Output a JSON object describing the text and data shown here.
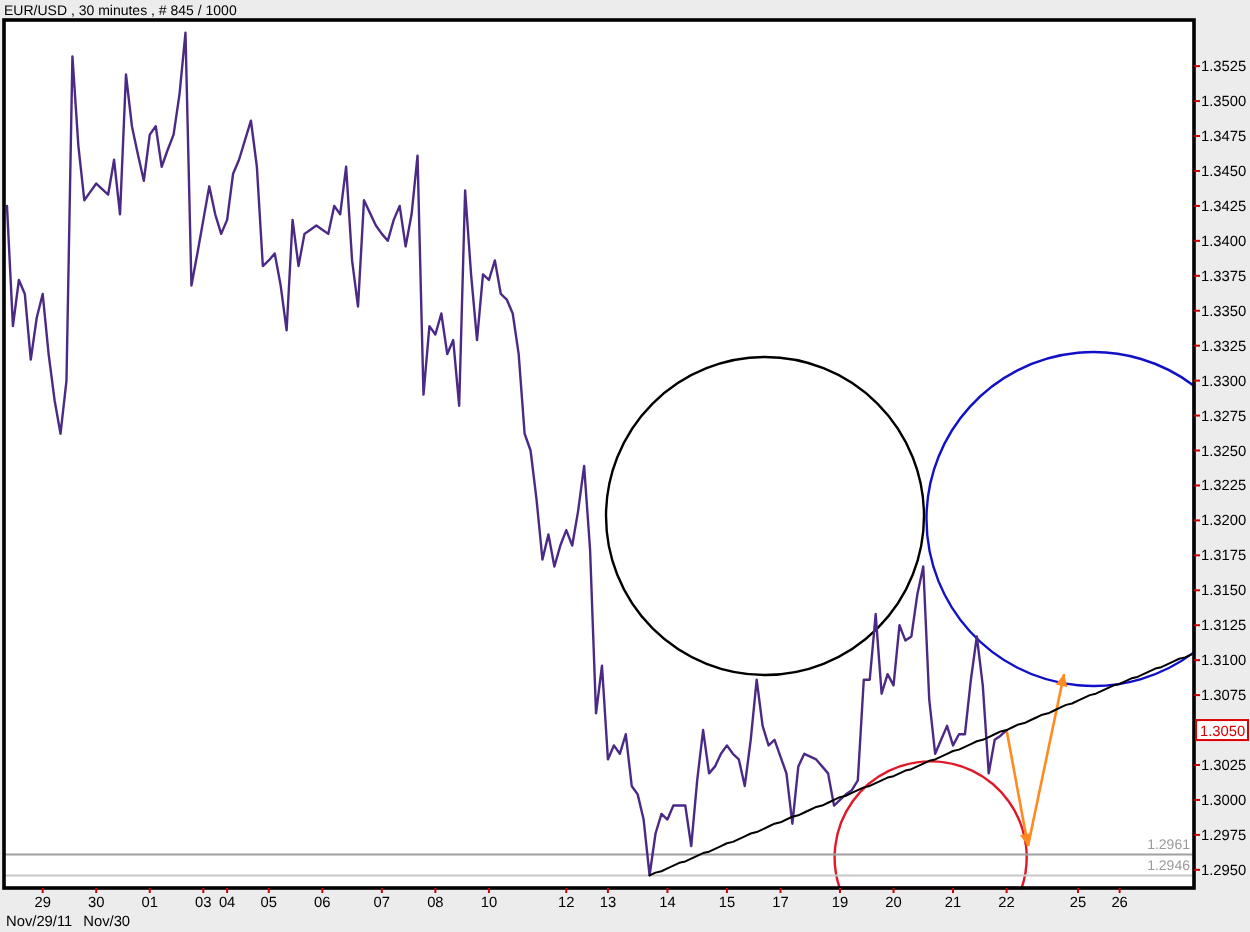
{
  "chart_data": {
    "type": "line",
    "title": "EUR/USD , 30 minutes , # 845 / 1000",
    "annotations": [
      "Nov/29/11",
      "Nov/30",
      {
        "text": "1.3050",
        "y": 1.305
      }
    ],
    "categories": [
      null,
      null,
      null,
      null,
      null,
      null,
      "29",
      null,
      null,
      null,
      null,
      null,
      null,
      null,
      null,
      "30",
      null,
      null,
      null,
      null,
      null,
      null,
      null,
      null,
      "01",
      null,
      null,
      null,
      null,
      null,
      null,
      null,
      null,
      "03",
      null,
      null,
      null,
      "04",
      null,
      null,
      null,
      null,
      null,
      null,
      "05",
      null,
      null,
      null,
      null,
      null,
      null,
      null,
      null,
      "06",
      null,
      null,
      null,
      null,
      null,
      null,
      null,
      null,
      null,
      "07",
      null,
      null,
      null,
      null,
      null,
      null,
      null,
      null,
      "08",
      null,
      null,
      null,
      null,
      null,
      null,
      null,
      null,
      "10",
      null,
      null,
      null,
      null,
      null,
      null,
      null,
      null,
      null,
      null,
      null,
      null,
      "12",
      null,
      null,
      null,
      null,
      null,
      null,
      "13",
      null,
      null,
      null,
      null,
      null,
      null,
      null,
      null,
      null,
      "14",
      null,
      null,
      null,
      null,
      null,
      null,
      null,
      null,
      null,
      "15",
      null,
      null,
      null,
      null,
      null,
      null,
      null,
      null,
      "17",
      null,
      null,
      null,
      null,
      null,
      null,
      null,
      null,
      null,
      "19",
      null,
      null,
      null,
      null,
      null,
      null,
      null,
      null,
      "20",
      null,
      null,
      null,
      null,
      null,
      null,
      null,
      null,
      null,
      "21",
      null,
      null,
      null,
      null,
      null,
      null,
      null,
      null,
      "22",
      null,
      null,
      null,
      null,
      null,
      null,
      null,
      null,
      null,
      null,
      null,
      "25",
      null,
      null,
      null,
      null,
      null,
      null,
      "26",
      null,
      null,
      null,
      null,
      null,
      null,
      null,
      null,
      null,
      null,
      null,
      null
    ],
    "ylim": [
      1.2937,
      1.3558
    ],
    "yticks": [
      {
        "value": 1.295,
        "label": "1.2950"
      },
      1.2975,
      {
        "value": 1.3,
        "label": "1.3000"
      },
      1.3025,
      1.3075,
      {
        "value": 1.31,
        "label": "1.3100"
      },
      1.3125,
      {
        "value": 1.315,
        "label": "1.3150"
      },
      1.3175,
      {
        "value": 1.32,
        "label": "1.3200"
      },
      1.3225,
      {
        "value": 1.325,
        "label": "1.3250"
      },
      1.3275,
      {
        "value": 1.33,
        "label": "1.3300"
      },
      1.3325,
      {
        "value": 1.335,
        "label": "1.3350"
      },
      1.3375,
      {
        "value": 1.34,
        "label": "1.3400"
      },
      1.3425,
      {
        "value": 1.345,
        "label": "1.3450"
      },
      1.3475,
      {
        "value": 1.35,
        "label": "1.3500"
      },
      1.3525
    ],
    "series": [
      {
        "color": "#4b2a86",
        "values": [
          1.3425,
          1.3339,
          1.3372,
          1.3362,
          1.3315,
          1.3345,
          1.3362,
          1.3319,
          1.3286,
          1.3262,
          1.33,
          1.3532,
          1.3468,
          1.3429,
          1.3435,
          1.3441,
          1.3437,
          1.3433,
          1.3458,
          1.3419,
          1.3519,
          1.3482,
          1.3462,
          1.3443,
          1.3476,
          1.3482,
          1.3453,
          1.3465,
          1.3476,
          1.3505,
          1.3549,
          1.3368,
          1.3391,
          1.3415,
          1.3439,
          1.3419,
          1.3405,
          1.3415,
          1.3448,
          1.3458,
          1.3472,
          1.3486,
          1.3453,
          1.3382,
          1.3386,
          1.3391,
          1.3368,
          1.3336,
          1.3415,
          1.3382,
          1.3405,
          1.3408,
          1.3411,
          1.3408,
          1.3405,
          1.3425,
          1.3419,
          1.3453,
          1.3386,
          1.3353,
          1.3429,
          1.342,
          1.3411,
          1.3405,
          1.34,
          1.3415,
          1.3425,
          1.3396,
          1.3419,
          1.3461,
          1.329,
          1.3339,
          1.3333,
          1.3348,
          1.3319,
          1.3329,
          1.3282,
          1.3436,
          1.3376,
          1.3329,
          1.3376,
          1.3372,
          1.3386,
          1.3362,
          1.3358,
          1.3348,
          1.3319,
          1.3262,
          1.325,
          1.3215,
          1.3172,
          1.319,
          1.3167,
          1.3182,
          1.3193,
          1.3182,
          1.3207,
          1.3239,
          1.3179,
          1.3062,
          1.3096,
          1.3029,
          1.3039,
          1.3033,
          1.3047,
          1.301,
          1.3004,
          1.2986,
          1.2946,
          1.2976,
          1.299,
          1.2986,
          1.2996,
          1.2996,
          1.2996,
          1.2967,
          1.3014,
          1.305,
          1.3019,
          1.3024,
          1.3033,
          1.3039,
          1.3033,
          1.3029,
          1.301,
          1.3043,
          1.3086,
          1.3053,
          1.3039,
          1.3043,
          1.3031,
          1.3019,
          1.2983,
          1.3024,
          1.3033,
          1.3031,
          1.3029,
          1.3024,
          1.3019,
          1.2996,
          1.3,
          1.3004,
          1.3007,
          1.3014,
          1.3086,
          1.3086,
          1.3133,
          1.3076,
          1.309,
          1.3082,
          1.3125,
          1.3114,
          1.3117,
          1.3147,
          1.3167,
          1.3072,
          1.3033,
          1.3043,
          1.3053,
          1.3039,
          1.3047,
          1.3047,
          1.3086,
          1.3117,
          1.3082,
          1.3019,
          1.3043,
          1.3046,
          1.305,
          null,
          null,
          null,
          null,
          null,
          null,
          null,
          null,
          null,
          null,
          null,
          null,
          null,
          null,
          null,
          null,
          null,
          null,
          null,
          null,
          null,
          null,
          null,
          null,
          null,
          null,
          null,
          null,
          null,
          null,
          null
        ]
      },
      {
        "color": "#000000",
        "values": [
          null,
          null,
          null,
          null,
          null,
          null,
          null,
          null,
          null,
          null,
          null,
          null,
          null,
          null,
          null,
          null,
          null,
          null,
          null,
          null,
          null,
          null,
          null,
          null,
          null,
          null,
          null,
          null,
          null,
          null,
          null,
          null,
          null,
          null,
          null,
          null,
          null,
          null,
          null,
          null,
          null,
          null,
          null,
          null,
          null,
          null,
          null,
          null,
          null,
          null,
          null,
          null,
          null,
          null,
          null,
          null,
          null,
          null,
          null,
          null,
          null,
          null,
          null,
          null,
          null,
          null,
          null,
          null,
          null,
          null,
          null,
          null,
          null,
          null,
          null,
          null,
          null,
          null,
          null,
          null,
          null,
          null,
          null,
          null,
          null,
          null,
          null,
          null,
          null,
          null,
          null,
          null,
          null,
          null,
          null,
          null,
          null,
          null,
          null,
          null,
          null,
          null,
          null,
          null,
          null,
          null,
          null,
          null,
          1.2946,
          1.2948,
          1.2949,
          1.2951,
          1.2953,
          1.2955,
          1.2956,
          1.2958,
          1.296,
          1.2962,
          1.2963,
          1.2965,
          1.2967,
          1.2969,
          1.297,
          1.2972,
          1.2974,
          1.2976,
          1.2977,
          1.2979,
          1.2981,
          1.2983,
          1.2984,
          1.2986,
          1.2988,
          1.2989,
          1.2991,
          1.2993,
          1.2995,
          1.2996,
          1.2998,
          1.3,
          1.3002,
          1.3003,
          1.3005,
          1.3007,
          1.3009,
          1.301,
          1.3012,
          1.3014,
          1.3016,
          1.3017,
          1.3019,
          1.3021,
          1.3022,
          1.3024,
          1.3026,
          1.3028,
          1.3029,
          1.3031,
          1.3033,
          1.3035,
          1.3036,
          1.3038,
          1.304,
          1.3042,
          1.3043,
          1.3045,
          1.3047,
          1.3049,
          1.305,
          1.3052,
          1.3054,
          1.3055,
          1.3057,
          1.3059,
          1.3061,
          1.3062,
          1.3064,
          1.3066,
          1.3068,
          1.3069,
          1.3071,
          1.3073,
          1.3075,
          1.3076,
          1.3078,
          1.308,
          1.3082,
          1.3083,
          1.3085,
          1.3087,
          1.3088,
          1.309,
          1.3092,
          1.3094,
          1.3095,
          1.3097,
          1.3099,
          1.3101,
          1.3102,
          1.3104
        ]
      }
    ],
    "ref_lines": [
      {
        "axis": "y",
        "value": 1.2961,
        "label": "1.2961",
        "color": "#a0a0a0"
      },
      {
        "axis": "y",
        "value": 1.2946,
        "label": "1.2946",
        "color": "#c8c8c8"
      }
    ]
  }
}
